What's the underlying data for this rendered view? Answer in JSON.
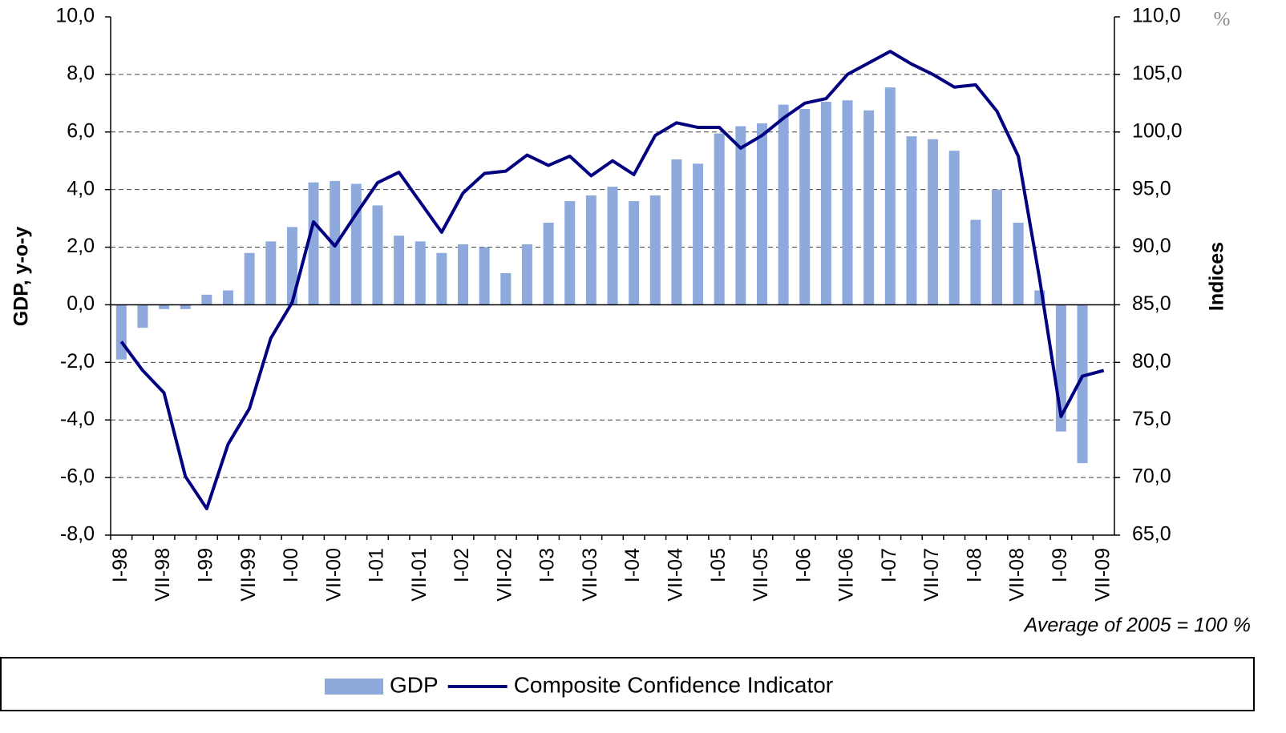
{
  "chart_data": {
    "type": "bar",
    "y_label": "GDP, y-o-y",
    "y2_label": "Indices",
    "y2_unit": "%",
    "note": "Average of 2005 = 100 %",
    "categories": [
      "I-98",
      null,
      "VII-98",
      null,
      "I-99",
      null,
      "VII-99",
      null,
      "I-00",
      null,
      "VII-00",
      null,
      "I-01",
      null,
      "VII-01",
      null,
      "I-02",
      null,
      "VII-02",
      null,
      "I-03",
      null,
      "VII-03",
      null,
      "I-04",
      null,
      "VII-04",
      null,
      "I-05",
      null,
      "VII-05",
      null,
      "I-06",
      null,
      "VII-06",
      null,
      "I-07",
      null,
      "VII-07",
      null,
      "I-08",
      null,
      "VII-08",
      null,
      "I-09",
      null,
      "VII-09"
    ],
    "series": [
      {
        "name": "GDP",
        "type": "bar",
        "color": "#8eaadc",
        "values": [
          -1.9,
          -0.8,
          -0.15,
          -0.15,
          0.35,
          0.5,
          1.8,
          2.2,
          2.7,
          4.25,
          4.3,
          4.2,
          3.45,
          2.4,
          2.2,
          1.8,
          2.1,
          2.0,
          1.1,
          2.1,
          2.85,
          3.6,
          3.8,
          4.1,
          3.6,
          3.8,
          5.05,
          4.9,
          5.95,
          6.2,
          6.3,
          6.95,
          6.8,
          7.05,
          7.1,
          6.75,
          7.55,
          5.85,
          5.75,
          5.35,
          2.95,
          4.0,
          2.85,
          0.5,
          -4.4,
          -5.5,
          null
        ]
      },
      {
        "name": "Composite Confidence Indicator",
        "type": "line",
        "axis": "y2",
        "color": "#000080",
        "values": [
          81.8,
          79.3,
          77.35,
          70.1,
          67.3,
          72.9,
          76.0,
          82.1,
          85.2,
          92.2,
          90.1,
          92.9,
          95.6,
          96.5,
          93.9,
          91.3,
          94.7,
          96.4,
          96.6,
          98.0,
          97.1,
          97.9,
          96.2,
          97.5,
          96.3,
          99.7,
          100.8,
          100.4,
          100.4,
          98.6,
          99.7,
          101.2,
          102.5,
          102.9,
          105.0,
          106.0,
          107.0,
          105.9,
          105.0,
          103.9,
          104.1,
          101.8,
          97.9,
          87.2,
          75.3,
          78.8,
          79.3
        ]
      }
    ],
    "ylim": [
      -8,
      10
    ],
    "yticks": [
      {
        "value": -8,
        "label": "-8,0"
      },
      {
        "value": -6,
        "label": "-6,0"
      },
      {
        "value": -4,
        "label": "-4,0"
      },
      {
        "value": -2,
        "label": "-2,0"
      },
      {
        "value": 0,
        "label": "0,0"
      },
      {
        "value": 2,
        "label": "2,0"
      },
      {
        "value": 4,
        "label": "4,0"
      },
      {
        "value": 6,
        "label": "6,0"
      },
      {
        "value": 8,
        "label": "8,0"
      },
      {
        "value": 10,
        "label": "10,0"
      }
    ],
    "y2lim": [
      65,
      110
    ],
    "y2ticks": [
      {
        "value": 65,
        "label": "65,0"
      },
      {
        "value": 70,
        "label": "70,0"
      },
      {
        "value": 75,
        "label": "75,0"
      },
      {
        "value": 80,
        "label": "80,0"
      },
      {
        "value": 85,
        "label": "85,0"
      },
      {
        "value": 90,
        "label": "90,0"
      },
      {
        "value": 95,
        "label": "95,0"
      },
      {
        "value": 100,
        "label": "100,0"
      },
      {
        "value": 105,
        "label": "105,0"
      },
      {
        "value": 110,
        "label": "110,0"
      }
    ],
    "grid": true
  }
}
